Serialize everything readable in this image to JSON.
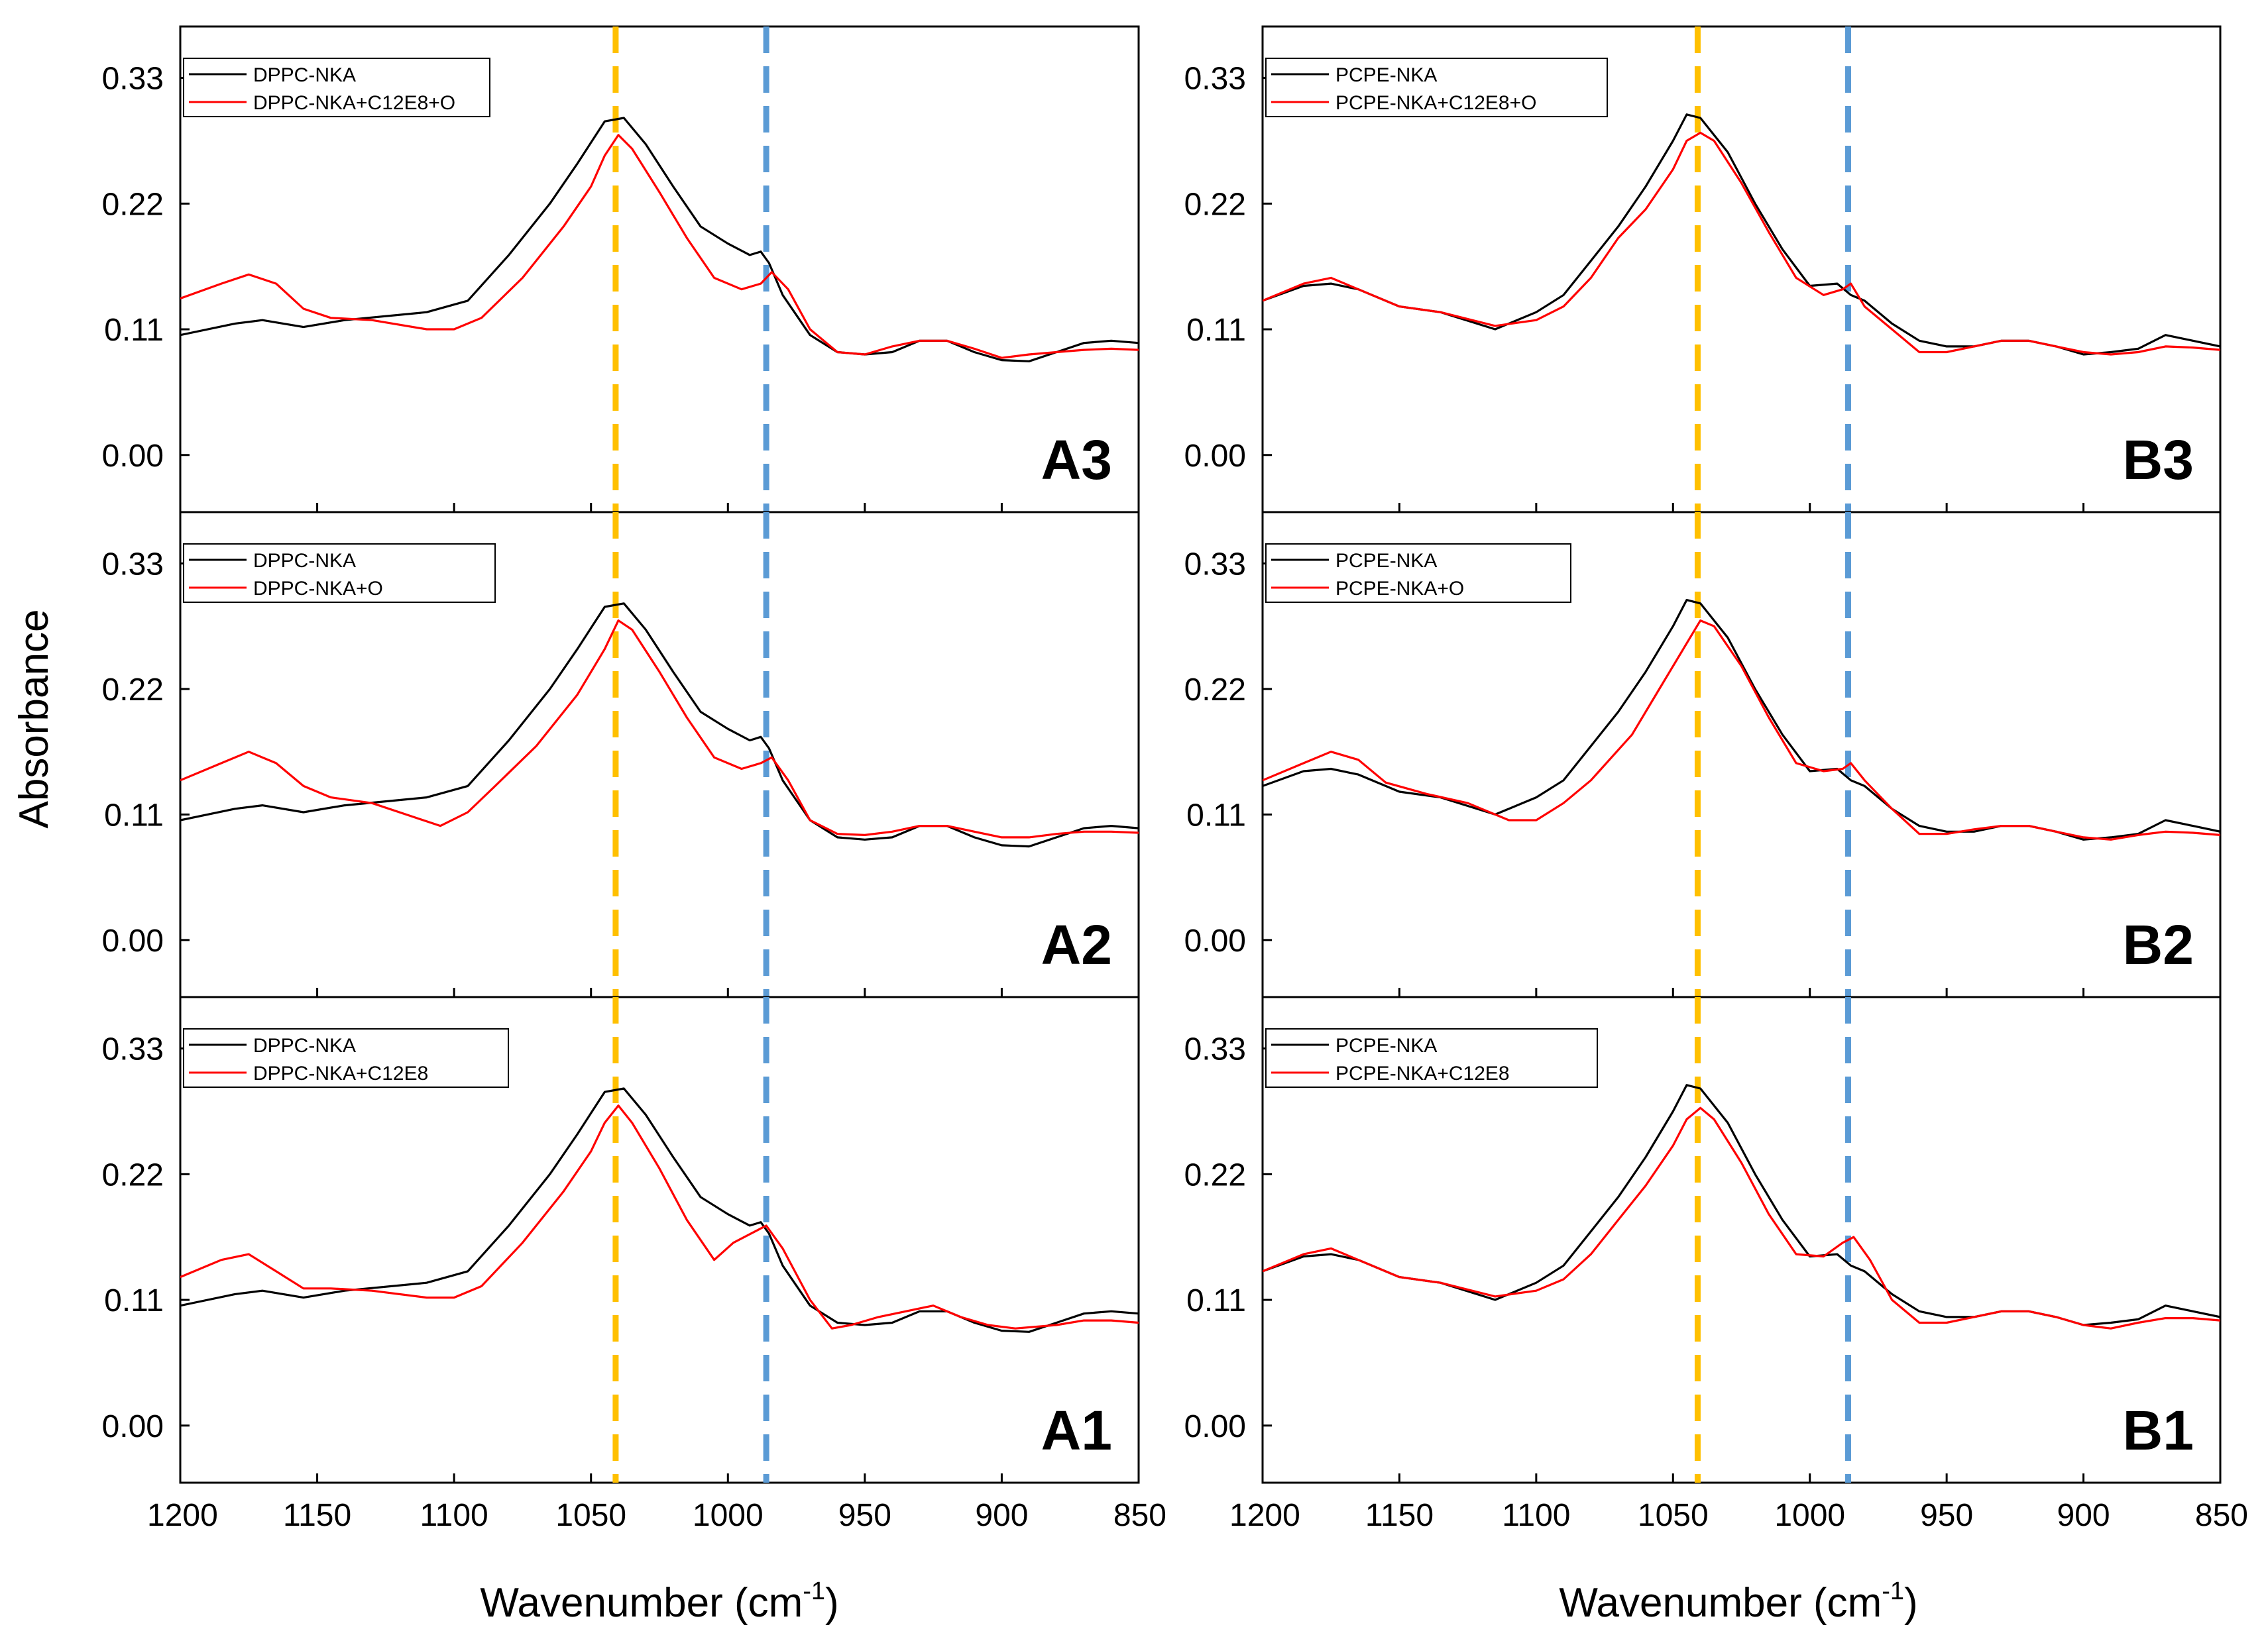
{
  "figure": {
    "ylabel": "Absorbance",
    "xlabel_main": "Wavenumber (cm",
    "xlabel_sup": "-1",
    "xlabel_close": ")"
  },
  "markers": {
    "yellow": {
      "x": 1041,
      "color": "#FFC000"
    },
    "blue": {
      "x": 986,
      "color": "#5B9BD5"
    }
  },
  "colors": {
    "reference": "#000000",
    "treated": "#ff0000"
  },
  "chart_data": [
    {
      "type": "line",
      "tag": "A3",
      "column": 0,
      "row": 0,
      "xlim": [
        1200,
        850
      ],
      "ylim": [
        -0.05,
        0.375
      ],
      "xticks": [
        "1200",
        "1150",
        "1100",
        "1050",
        "1000",
        "950",
        "900",
        "850"
      ],
      "yticks": [
        "0.00",
        "0.11",
        "0.22",
        "0.33"
      ],
      "series": [
        {
          "name": "DPPC-NKA",
          "color": "#000000",
          "x": [
            1200,
            1180,
            1170,
            1155,
            1140,
            1110,
            1095,
            1080,
            1065,
            1055,
            1045,
            1038,
            1030,
            1020,
            1010,
            1000,
            992,
            988,
            985,
            980,
            970,
            960,
            950,
            940,
            930,
            920,
            910,
            900,
            890,
            880,
            870,
            860,
            850
          ],
          "y": [
            0.105,
            0.115,
            0.118,
            0.112,
            0.118,
            0.125,
            0.135,
            0.175,
            0.22,
            0.255,
            0.292,
            0.295,
            0.272,
            0.235,
            0.2,
            0.185,
            0.175,
            0.178,
            0.168,
            0.14,
            0.105,
            0.09,
            0.088,
            0.09,
            0.1,
            0.1,
            0.09,
            0.083,
            0.082,
            0.09,
            0.098,
            0.1,
            0.098
          ]
        },
        {
          "name": "DPPC-NKA+C12E8+O",
          "color": "#ff0000",
          "x": [
            1200,
            1185,
            1175,
            1165,
            1155,
            1145,
            1130,
            1110,
            1100,
            1090,
            1075,
            1060,
            1050,
            1045,
            1040,
            1035,
            1025,
            1015,
            1005,
            995,
            988,
            984,
            978,
            970,
            960,
            950,
            940,
            930,
            920,
            910,
            900,
            890,
            880,
            870,
            860,
            850
          ],
          "y": [
            0.137,
            0.15,
            0.158,
            0.15,
            0.128,
            0.12,
            0.118,
            0.11,
            0.11,
            0.12,
            0.155,
            0.2,
            0.235,
            0.262,
            0.28,
            0.268,
            0.23,
            0.19,
            0.155,
            0.145,
            0.15,
            0.16,
            0.145,
            0.11,
            0.09,
            0.088,
            0.095,
            0.1,
            0.1,
            0.093,
            0.085,
            0.088,
            0.09,
            0.092,
            0.093,
            0.092
          ]
        }
      ]
    },
    {
      "type": "line",
      "tag": "A2",
      "column": 0,
      "row": 1,
      "xlim": [
        1200,
        850
      ],
      "ylim": [
        -0.05,
        0.375
      ],
      "xticks": [
        "1200",
        "1150",
        "1100",
        "1050",
        "1000",
        "950",
        "900",
        "850"
      ],
      "yticks": [
        "0.00",
        "0.11",
        "0.22",
        "0.33"
      ],
      "series": [
        {
          "name": "DPPC-NKA",
          "color": "#000000",
          "x": [
            1200,
            1180,
            1170,
            1155,
            1140,
            1110,
            1095,
            1080,
            1065,
            1055,
            1045,
            1038,
            1030,
            1020,
            1010,
            1000,
            992,
            988,
            985,
            980,
            970,
            960,
            950,
            940,
            930,
            920,
            910,
            900,
            890,
            880,
            870,
            860,
            850
          ],
          "y": [
            0.105,
            0.115,
            0.118,
            0.112,
            0.118,
            0.125,
            0.135,
            0.175,
            0.22,
            0.255,
            0.292,
            0.295,
            0.272,
            0.235,
            0.2,
            0.185,
            0.175,
            0.178,
            0.168,
            0.14,
            0.105,
            0.09,
            0.088,
            0.09,
            0.1,
            0.1,
            0.09,
            0.083,
            0.082,
            0.09,
            0.098,
            0.1,
            0.098
          ]
        },
        {
          "name": "DPPC-NKA+O",
          "color": "#ff0000",
          "x": [
            1200,
            1185,
            1175,
            1165,
            1155,
            1145,
            1130,
            1115,
            1105,
            1095,
            1085,
            1070,
            1055,
            1045,
            1040,
            1035,
            1025,
            1015,
            1005,
            995,
            988,
            984,
            978,
            970,
            960,
            950,
            940,
            930,
            920,
            910,
            900,
            890,
            880,
            870,
            860,
            850
          ],
          "y": [
            0.14,
            0.155,
            0.165,
            0.155,
            0.135,
            0.125,
            0.12,
            0.108,
            0.1,
            0.112,
            0.135,
            0.17,
            0.215,
            0.255,
            0.28,
            0.272,
            0.235,
            0.195,
            0.16,
            0.15,
            0.155,
            0.16,
            0.14,
            0.105,
            0.093,
            0.092,
            0.095,
            0.1,
            0.1,
            0.095,
            0.09,
            0.09,
            0.093,
            0.095,
            0.095,
            0.094
          ]
        }
      ]
    },
    {
      "type": "line",
      "tag": "A1",
      "column": 0,
      "row": 2,
      "xlim": [
        1200,
        850
      ],
      "ylim": [
        -0.05,
        0.375
      ],
      "xticks": [
        "1200",
        "1150",
        "1100",
        "1050",
        "1000",
        "950",
        "900",
        "850"
      ],
      "yticks": [
        "0.00",
        "0.11",
        "0.22",
        "0.33"
      ],
      "series": [
        {
          "name": "DPPC-NKA",
          "color": "#000000",
          "x": [
            1200,
            1180,
            1170,
            1155,
            1140,
            1110,
            1095,
            1080,
            1065,
            1055,
            1045,
            1038,
            1030,
            1020,
            1010,
            1000,
            992,
            988,
            985,
            980,
            970,
            960,
            950,
            940,
            930,
            920,
            910,
            900,
            890,
            880,
            870,
            860,
            850
          ],
          "y": [
            0.105,
            0.115,
            0.118,
            0.112,
            0.118,
            0.125,
            0.135,
            0.175,
            0.22,
            0.255,
            0.292,
            0.295,
            0.272,
            0.235,
            0.2,
            0.185,
            0.175,
            0.178,
            0.168,
            0.14,
            0.105,
            0.09,
            0.088,
            0.09,
            0.1,
            0.1,
            0.09,
            0.083,
            0.082,
            0.09,
            0.098,
            0.1,
            0.098
          ]
        },
        {
          "name": "DPPC-NKA+C12E8",
          "color": "#ff0000",
          "x": [
            1200,
            1185,
            1175,
            1165,
            1155,
            1145,
            1130,
            1110,
            1100,
            1090,
            1075,
            1060,
            1050,
            1045,
            1040,
            1035,
            1025,
            1015,
            1005,
            998,
            990,
            986,
            980,
            970,
            962,
            955,
            945,
            935,
            925,
            915,
            905,
            895,
            880,
            870,
            860,
            850
          ],
          "y": [
            0.13,
            0.145,
            0.15,
            0.135,
            0.12,
            0.12,
            0.118,
            0.112,
            0.112,
            0.122,
            0.16,
            0.205,
            0.24,
            0.265,
            0.28,
            0.265,
            0.225,
            0.18,
            0.145,
            0.16,
            0.17,
            0.175,
            0.155,
            0.11,
            0.085,
            0.088,
            0.095,
            0.1,
            0.105,
            0.095,
            0.088,
            0.085,
            0.088,
            0.092,
            0.092,
            0.09
          ]
        }
      ]
    },
    {
      "type": "line",
      "tag": "B3",
      "column": 1,
      "row": 0,
      "xlim": [
        1200,
        850
      ],
      "ylim": [
        -0.05,
        0.375
      ],
      "xticks": [
        "1200",
        "1150",
        "1100",
        "1050",
        "1000",
        "950",
        "900",
        "850"
      ],
      "yticks": [
        "0.00",
        "0.11",
        "0.22",
        "0.33"
      ],
      "series": [
        {
          "name": "PCPE-NKA",
          "color": "#000000",
          "x": [
            1200,
            1185,
            1175,
            1165,
            1150,
            1135,
            1115,
            1100,
            1090,
            1080,
            1070,
            1060,
            1050,
            1045,
            1040,
            1030,
            1020,
            1010,
            1000,
            990,
            985,
            980,
            970,
            960,
            950,
            940,
            930,
            920,
            910,
            900,
            890,
            880,
            870,
            860,
            850
          ],
          "y": [
            0.135,
            0.148,
            0.15,
            0.145,
            0.13,
            0.125,
            0.11,
            0.125,
            0.14,
            0.17,
            0.2,
            0.235,
            0.275,
            0.298,
            0.295,
            0.265,
            0.22,
            0.18,
            0.148,
            0.15,
            0.14,
            0.135,
            0.115,
            0.1,
            0.095,
            0.095,
            0.1,
            0.1,
            0.095,
            0.088,
            0.09,
            0.093,
            0.105,
            0.1,
            0.095
          ]
        },
        {
          "name": "PCPE-NKA+C12E8+O",
          "color": "#ff0000",
          "x": [
            1200,
            1185,
            1175,
            1165,
            1150,
            1135,
            1115,
            1100,
            1090,
            1080,
            1070,
            1060,
            1050,
            1045,
            1040,
            1035,
            1025,
            1015,
            1005,
            995,
            988,
            985,
            980,
            970,
            960,
            950,
            940,
            930,
            920,
            910,
            900,
            890,
            880,
            870,
            860,
            850
          ],
          "y": [
            0.135,
            0.15,
            0.155,
            0.145,
            0.13,
            0.125,
            0.113,
            0.118,
            0.13,
            0.155,
            0.19,
            0.215,
            0.25,
            0.275,
            0.282,
            0.275,
            0.238,
            0.195,
            0.155,
            0.14,
            0.145,
            0.15,
            0.13,
            0.11,
            0.09,
            0.09,
            0.095,
            0.1,
            0.1,
            0.095,
            0.09,
            0.088,
            0.09,
            0.095,
            0.094,
            0.092
          ]
        }
      ]
    },
    {
      "type": "line",
      "tag": "B2",
      "column": 1,
      "row": 1,
      "xlim": [
        1200,
        850
      ],
      "ylim": [
        -0.05,
        0.375
      ],
      "xticks": [
        "1200",
        "1150",
        "1100",
        "1050",
        "1000",
        "950",
        "900",
        "850"
      ],
      "yticks": [
        "0.00",
        "0.11",
        "0.22",
        "0.33"
      ],
      "series": [
        {
          "name": "PCPE-NKA",
          "color": "#000000",
          "x": [
            1200,
            1185,
            1175,
            1165,
            1150,
            1135,
            1115,
            1100,
            1090,
            1080,
            1070,
            1060,
            1050,
            1045,
            1040,
            1030,
            1020,
            1010,
            1000,
            990,
            985,
            980,
            970,
            960,
            950,
            940,
            930,
            920,
            910,
            900,
            890,
            880,
            870,
            860,
            850
          ],
          "y": [
            0.135,
            0.148,
            0.15,
            0.145,
            0.13,
            0.125,
            0.11,
            0.125,
            0.14,
            0.17,
            0.2,
            0.235,
            0.275,
            0.298,
            0.295,
            0.265,
            0.22,
            0.18,
            0.148,
            0.15,
            0.14,
            0.135,
            0.115,
            0.1,
            0.095,
            0.095,
            0.1,
            0.1,
            0.095,
            0.088,
            0.09,
            0.093,
            0.105,
            0.1,
            0.095
          ]
        },
        {
          "name": "PCPE-NKA+O",
          "color": "#ff0000",
          "x": [
            1200,
            1185,
            1175,
            1165,
            1155,
            1140,
            1125,
            1110,
            1100,
            1090,
            1080,
            1065,
            1055,
            1045,
            1040,
            1035,
            1025,
            1015,
            1005,
            995,
            988,
            985,
            980,
            970,
            960,
            950,
            940,
            930,
            920,
            910,
            900,
            890,
            880,
            870,
            860,
            850
          ],
          "y": [
            0.14,
            0.155,
            0.165,
            0.158,
            0.138,
            0.128,
            0.12,
            0.105,
            0.105,
            0.12,
            0.14,
            0.18,
            0.22,
            0.26,
            0.28,
            0.275,
            0.24,
            0.195,
            0.155,
            0.148,
            0.15,
            0.155,
            0.14,
            0.115,
            0.093,
            0.093,
            0.097,
            0.1,
            0.1,
            0.095,
            0.09,
            0.088,
            0.092,
            0.095,
            0.094,
            0.092
          ]
        }
      ]
    },
    {
      "type": "line",
      "tag": "B1",
      "column": 1,
      "row": 2,
      "xlim": [
        1200,
        850
      ],
      "ylim": [
        -0.05,
        0.375
      ],
      "xticks": [
        "1200",
        "1150",
        "1100",
        "1050",
        "1000",
        "950",
        "900",
        "850"
      ],
      "yticks": [
        "0.00",
        "0.11",
        "0.22",
        "0.33"
      ],
      "series": [
        {
          "name": "PCPE-NKA",
          "color": "#000000",
          "x": [
            1200,
            1185,
            1175,
            1165,
            1150,
            1135,
            1115,
            1100,
            1090,
            1080,
            1070,
            1060,
            1050,
            1045,
            1040,
            1030,
            1020,
            1010,
            1000,
            990,
            985,
            980,
            970,
            960,
            950,
            940,
            930,
            920,
            910,
            900,
            890,
            880,
            870,
            860,
            850
          ],
          "y": [
            0.135,
            0.148,
            0.15,
            0.145,
            0.13,
            0.125,
            0.11,
            0.125,
            0.14,
            0.17,
            0.2,
            0.235,
            0.275,
            0.298,
            0.295,
            0.265,
            0.22,
            0.18,
            0.148,
            0.15,
            0.14,
            0.135,
            0.115,
            0.1,
            0.095,
            0.095,
            0.1,
            0.1,
            0.095,
            0.088,
            0.09,
            0.093,
            0.105,
            0.1,
            0.095
          ]
        },
        {
          "name": "PCPE-NKA+C12E8",
          "color": "#ff0000",
          "x": [
            1200,
            1185,
            1175,
            1165,
            1150,
            1135,
            1115,
            1100,
            1090,
            1080,
            1070,
            1060,
            1050,
            1045,
            1040,
            1035,
            1025,
            1015,
            1005,
            995,
            988,
            984,
            978,
            970,
            960,
            950,
            940,
            930,
            920,
            910,
            900,
            890,
            880,
            870,
            860,
            850
          ],
          "y": [
            0.135,
            0.15,
            0.155,
            0.145,
            0.13,
            0.125,
            0.113,
            0.118,
            0.128,
            0.15,
            0.18,
            0.21,
            0.245,
            0.268,
            0.278,
            0.268,
            0.23,
            0.185,
            0.15,
            0.148,
            0.16,
            0.165,
            0.145,
            0.11,
            0.09,
            0.09,
            0.095,
            0.1,
            0.1,
            0.095,
            0.088,
            0.085,
            0.09,
            0.094,
            0.094,
            0.092
          ]
        }
      ]
    }
  ]
}
